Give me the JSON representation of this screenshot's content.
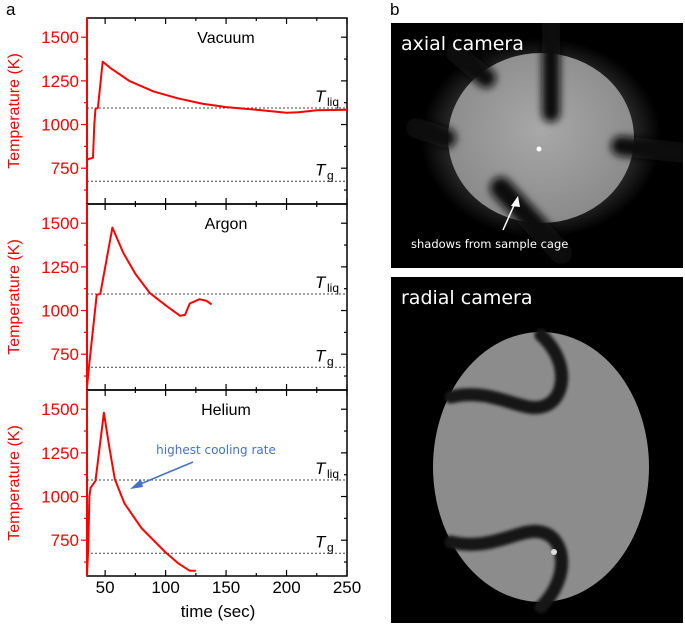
{
  "panel_a_label": "a",
  "panel_b_label": "b",
  "chart_data": {
    "type": "line",
    "xlabel": "time (sec)",
    "ylabel": "Temperature (K)",
    "xlim": [
      35,
      250
    ],
    "ylim": [
      545,
      1610
    ],
    "xticks": [
      50,
      100,
      150,
      200,
      250
    ],
    "yticks": [
      750,
      1000,
      1250,
      1500
    ],
    "line_color": "#ff0000",
    "reference_lines": [
      {
        "label": "T",
        "subscript": "liq",
        "value": 1095
      },
      {
        "label": "T",
        "subscript": "g",
        "value": 675
      }
    ],
    "panels": [
      {
        "title": "Vacuum",
        "points": [
          [
            35,
            800
          ],
          [
            40,
            810
          ],
          [
            41,
            1000
          ],
          [
            42,
            1090
          ],
          [
            44,
            1095
          ],
          [
            48,
            1360
          ],
          [
            55,
            1320
          ],
          [
            70,
            1250
          ],
          [
            90,
            1190
          ],
          [
            110,
            1150
          ],
          [
            130,
            1120
          ],
          [
            150,
            1100
          ],
          [
            175,
            1085
          ],
          [
            200,
            1068
          ],
          [
            210,
            1070
          ],
          [
            225,
            1082
          ],
          [
            250,
            1085
          ]
        ]
      },
      {
        "title": "Argon",
        "points": [
          [
            35,
            560
          ],
          [
            37,
            700
          ],
          [
            43,
            1090
          ],
          [
            46,
            1095
          ],
          [
            56,
            1475
          ],
          [
            65,
            1330
          ],
          [
            75,
            1210
          ],
          [
            87,
            1100
          ],
          [
            100,
            1030
          ],
          [
            112,
            970
          ],
          [
            116,
            975
          ],
          [
            120,
            1040
          ],
          [
            128,
            1065
          ],
          [
            134,
            1055
          ],
          [
            138,
            1035
          ]
        ]
      },
      {
        "title": "Helium",
        "annotation": "highest cooling rate",
        "annotation_color": "#4472c4",
        "points": [
          [
            35,
            555
          ],
          [
            36,
            700
          ],
          [
            37,
            1000
          ],
          [
            38,
            1050
          ],
          [
            42,
            1090
          ],
          [
            49,
            1480
          ],
          [
            53,
            1300
          ],
          [
            58,
            1100
          ],
          [
            66,
            960
          ],
          [
            80,
            820
          ],
          [
            100,
            680
          ],
          [
            110,
            620
          ],
          [
            120,
            575
          ],
          [
            125,
            575
          ]
        ]
      }
    ]
  },
  "cameras": {
    "axial": {
      "label": "axial camera",
      "annotation": "shadows from sample cage"
    },
    "radial": {
      "label": "radial camera"
    }
  }
}
